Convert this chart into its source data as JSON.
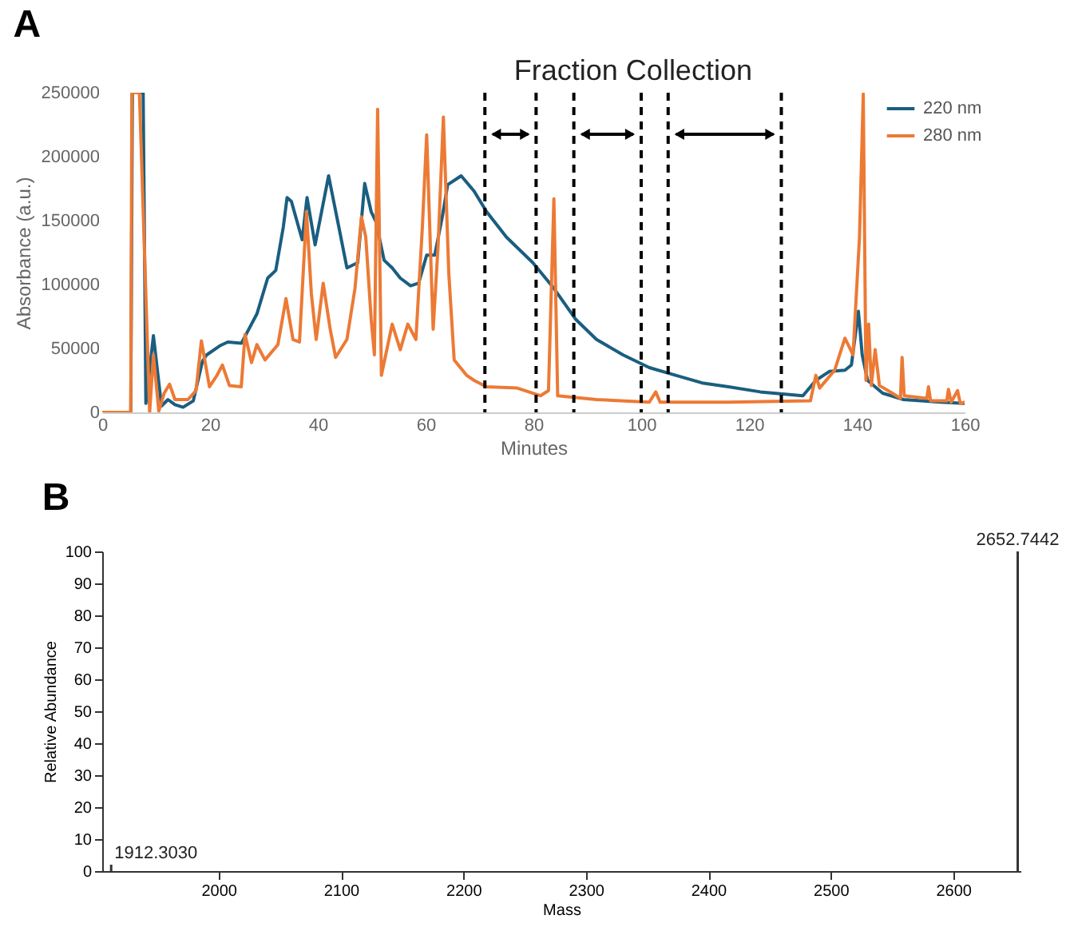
{
  "chart_data": [
    {
      "type": "line",
      "title": "A",
      "xlabel": "Minutes",
      "ylabel": "Absorbance (a.u.)",
      "xlim": [
        0,
        160
      ],
      "xticks": [
        0,
        20,
        40,
        60,
        80,
        100,
        120,
        140,
        160
      ],
      "ylim": [
        0,
        250000
      ],
      "yticks": [
        0,
        50000,
        100000,
        150000,
        200000,
        250000
      ],
      "legend": "top right",
      "series": [
        {
          "name": "220 nm",
          "color": "#1a5e80",
          "x": [
            0,
            5.3,
            5.6,
            7.6,
            8.1,
            9.5,
            11,
            12.2,
            13.5,
            15,
            16.9,
            18.6,
            19.4,
            21.8,
            23.3,
            25.8,
            26.7,
            28.7,
            30.7,
            32.2,
            33.6,
            34.3,
            35.1,
            37.1,
            38,
            39.5,
            42,
            43.9,
            45.4,
            47.4,
            48.7,
            49.9,
            50.8,
            52.3,
            53.8,
            55.3,
            57.2,
            58.7,
            60.2,
            61.7,
            63.1,
            64.1,
            66.6,
            69,
            71.3,
            75,
            79.9,
            83.8,
            87.8,
            91.7,
            96.6,
            101.5,
            106.4,
            111.3,
            116.2,
            122.1,
            130,
            132.4,
            134.9,
            137.8,
            139,
            140.3,
            141,
            142,
            144.8,
            148.7,
            155.6,
            160
          ],
          "values": [
            0,
            0,
            250000,
            250000,
            7000,
            60000,
            5000,
            10000,
            6000,
            4000,
            9000,
            40000,
            45000,
            52000,
            55000,
            54000,
            61000,
            77000,
            105000,
            111000,
            145000,
            168000,
            165000,
            135000,
            168000,
            131000,
            185000,
            145000,
            113000,
            117000,
            179000,
            157000,
            149000,
            119000,
            113000,
            105000,
            99000,
            101000,
            123000,
            123000,
            153000,
            178000,
            185000,
            173000,
            157000,
            137000,
            117000,
            97000,
            73000,
            57000,
            45000,
            35000,
            29000,
            23000,
            20000,
            16000,
            13000,
            25000,
            32000,
            33000,
            37000,
            79000,
            45000,
            25000,
            15000,
            10000,
            8000,
            7000
          ]
        },
        {
          "name": "280 nm",
          "color": "#ec7a35",
          "x": [
            0,
            5.3,
            5.5,
            6.9,
            8.8,
            9.5,
            10.5,
            11.5,
            12.5,
            13.5,
            15.9,
            17.4,
            18.4,
            19.9,
            21.3,
            22.3,
            23.6,
            25.8,
            26.5,
            27.7,
            28.7,
            30.2,
            32.6,
            34.1,
            35.4,
            36.6,
            37.9,
            38.8,
            39.7,
            41,
            42.3,
            43.3,
            45.4,
            46.9,
            48.1,
            48.9,
            49.9,
            50.5,
            51.1,
            51.8,
            53.8,
            55.3,
            56.7,
            58.2,
            59.4,
            60.2,
            61.4,
            62.3,
            63.3,
            64.3,
            65.3,
            67.6,
            69,
            71.3,
            77,
            81.3,
            82.8,
            83.8,
            84.5,
            91.7,
            101.5,
            102.7,
            103.5,
            116.2,
            131.4,
            132.4,
            133.1,
            135.9,
            137.8,
            139.3,
            140.5,
            141.2,
            141.7,
            142.2,
            142.7,
            143.4,
            144.2,
            146.6,
            148.1,
            148.4,
            148.8,
            153,
            153.3,
            153.7,
            156.7,
            157,
            157.5,
            158.7,
            159.2,
            160
          ],
          "values": [
            0,
            0,
            250000,
            250000,
            0,
            45000,
            1000,
            15000,
            22000,
            10000,
            10000,
            17000,
            56000,
            20000,
            29000,
            37000,
            21000,
            20000,
            61000,
            39000,
            53000,
            41000,
            53000,
            89000,
            57000,
            55000,
            157000,
            93000,
            57000,
            101000,
            65000,
            43000,
            57000,
            97000,
            153000,
            137000,
            73000,
            45000,
            237000,
            29000,
            69000,
            49000,
            69000,
            57000,
            145000,
            217000,
            65000,
            129000,
            231000,
            109000,
            41000,
            29000,
            25000,
            20000,
            19000,
            13000,
            17000,
            167000,
            13000,
            10000,
            8000,
            16000,
            8000,
            8000,
            9000,
            29000,
            19000,
            33000,
            58000,
            45000,
            137000,
            249000,
            25000,
            69000,
            21000,
            49000,
            21000,
            15000,
            11000,
            43000,
            13000,
            11000,
            20000,
            9000,
            9000,
            18000,
            8000,
            17000,
            7000,
            8000
          ]
        }
      ],
      "ref_lines": [
        {
          "axis": "x",
          "value": 71,
          "color": "#000000",
          "line_style": "dashed"
        },
        {
          "axis": "x",
          "value": 80.5,
          "color": "#000000",
          "line_style": "dashed"
        },
        {
          "axis": "x",
          "value": 87.5,
          "color": "#000000",
          "line_style": "dashed"
        },
        {
          "axis": "x",
          "value": 100,
          "color": "#000000",
          "line_style": "dashed"
        },
        {
          "axis": "x",
          "value": 105,
          "color": "#000000",
          "line_style": "dashed"
        },
        {
          "axis": "x",
          "value": 126,
          "color": "#000000",
          "line_style": "dashed"
        }
      ],
      "annotations": [
        "Fraction Collection"
      ]
    },
    {
      "type": "bar",
      "title": "B",
      "xlabel": "Mass",
      "ylabel": "Relative Abundance",
      "x": [
        1912.303,
        2652.7442
      ],
      "values": [
        2,
        100
      ],
      "color": "#333333",
      "annotations": [
        {
          "text": "1912.3030",
          "x": 1912.303,
          "y": 2
        },
        {
          "text": "2652.7442",
          "x": 2652.7442,
          "y": 100
        }
      ],
      "xlim": [
        1905,
        2655
      ],
      "xticks": [
        2000,
        2100,
        2200,
        2300,
        2400,
        2500,
        2600
      ],
      "ylim": [
        0,
        100
      ],
      "yticks": [
        0,
        10,
        20,
        30,
        40,
        50,
        60,
        70,
        80,
        90,
        100
      ]
    }
  ]
}
